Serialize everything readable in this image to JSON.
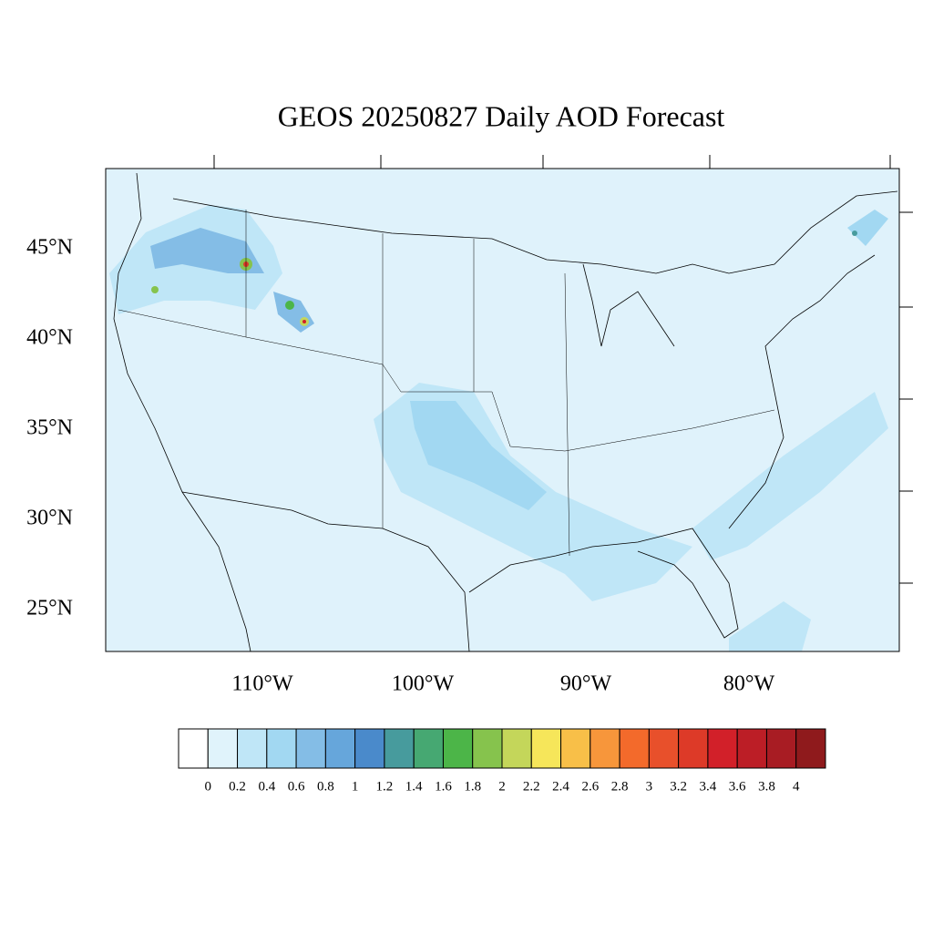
{
  "title": "GEOS 20250827 Daily AOD Forecast",
  "lat_labels": [
    "45°N",
    "40°N",
    "35°N",
    "30°N",
    "25°N"
  ],
  "lon_labels": [
    "110°W",
    "100°W",
    "90°W",
    "80°W"
  ],
  "colorbar": {
    "labels": [
      "0",
      "0.2",
      "0.4",
      "0.6",
      "0.8",
      "1",
      "1.2",
      "1.4",
      "1.6",
      "1.8",
      "2",
      "2.2",
      "2.4",
      "2.6",
      "2.8",
      "3",
      "3.2",
      "3.4",
      "3.6",
      "3.8",
      "4"
    ],
    "colors": [
      "#ffffff",
      "#e0f3fb",
      "#bfe6f7",
      "#a2d8f2",
      "#84bde6",
      "#66a6db",
      "#4a8acb",
      "#479b9d",
      "#46a872",
      "#4cb548",
      "#86c34d",
      "#c4d65a",
      "#f6e65a",
      "#f8bf48",
      "#f7963b",
      "#f36a2b",
      "#e8502b",
      "#dd3a28",
      "#d22029",
      "#bc1e26",
      "#a81c23",
      "#8f1a1c"
    ]
  }
}
